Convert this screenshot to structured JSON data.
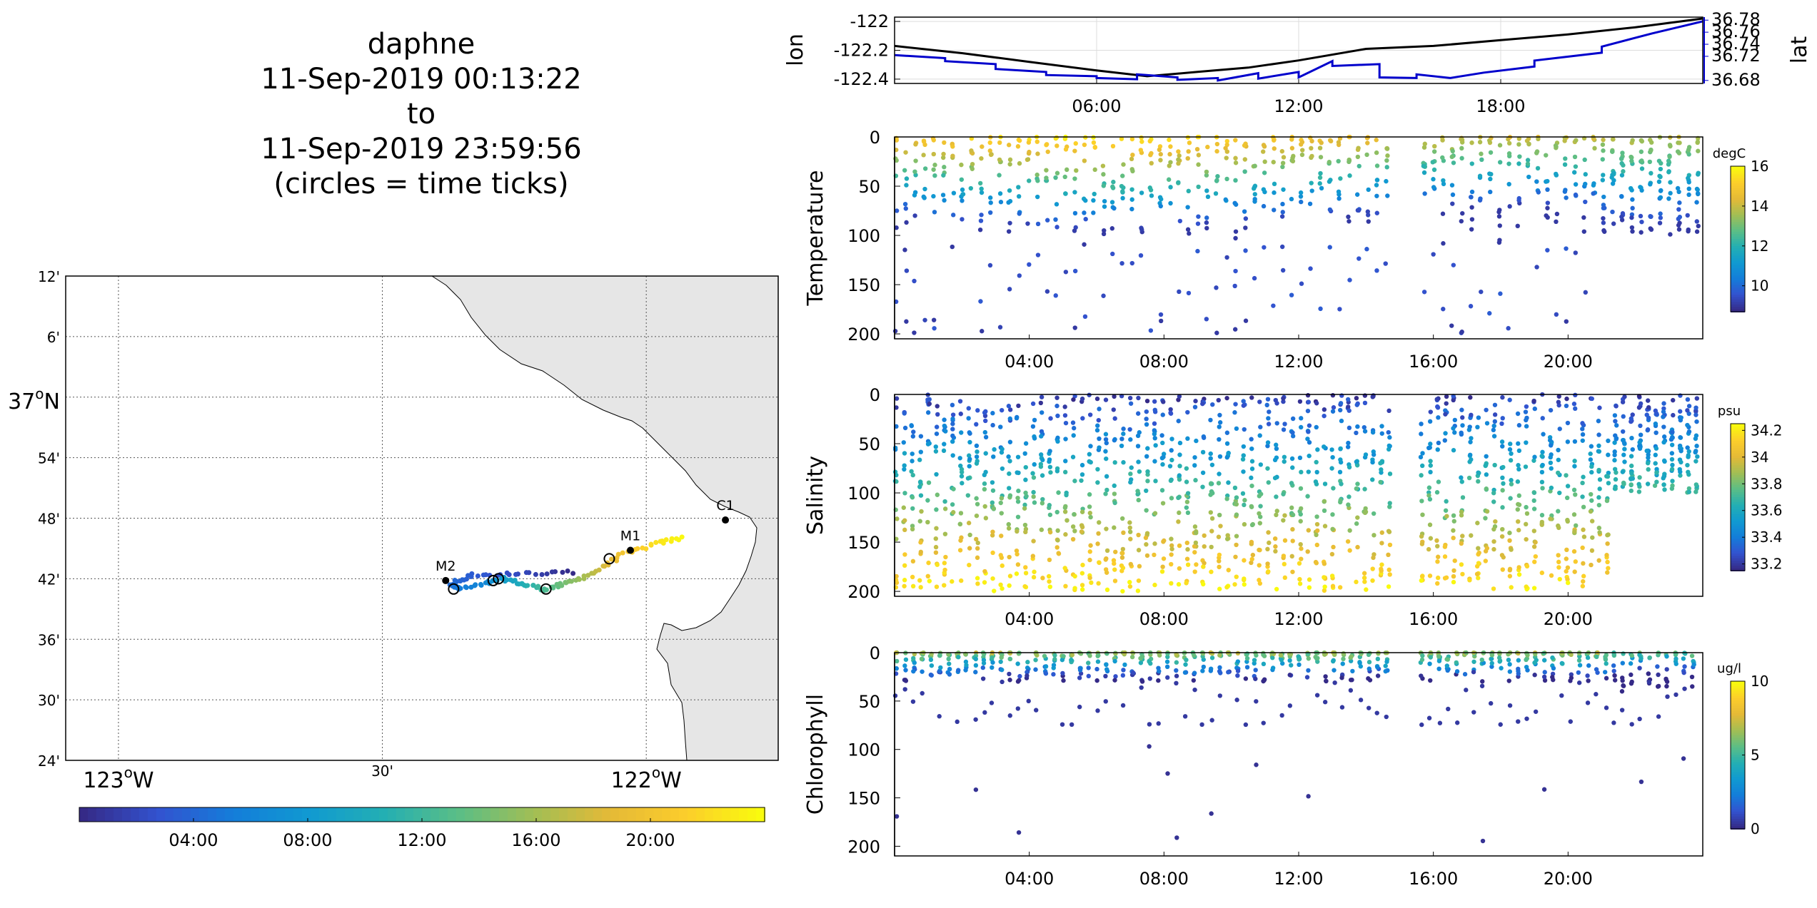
{
  "title": {
    "lines": [
      "daphne",
      "11-Sep-2019 00:13:22",
      "to",
      "11-Sep-2019 23:59:56",
      "(circles = time ticks)"
    ]
  },
  "colors": {
    "track_blue": "#0000cc",
    "track_black": "#000000",
    "land": "#e6e6e6"
  },
  "chart_data": [
    {
      "type": "line",
      "name": "position",
      "ylabel_left": "lon",
      "ylabel_right": "lat",
      "xlim": [
        0,
        24
      ],
      "x_ticks": [
        "06:00",
        "12:00",
        "18:00"
      ],
      "x_tick_values": [
        6,
        12,
        18
      ],
      "ylim_left": [
        -122.43,
        -121.97
      ],
      "y_ticks_left": [
        "-122",
        "-122.2",
        "-122.4"
      ],
      "y_tick_values_left": [
        -122,
        -122.2,
        -122.4
      ],
      "ylim_right": [
        36.675,
        36.785
      ],
      "y_ticks_right": [
        "36.78",
        "36.76",
        "36.74",
        "36.72",
        "36.68"
      ],
      "y_tick_values_right": [
        36.78,
        36.76,
        36.74,
        36.72,
        36.68
      ],
      "series": [
        {
          "name": "lon",
          "color": "#000000",
          "x": [
            0,
            2,
            4,
            6,
            7.5,
            9,
            10.5,
            12,
            14,
            16,
            18,
            20,
            22,
            24
          ],
          "y": [
            -122.17,
            -122.22,
            -122.28,
            -122.34,
            -122.38,
            -122.35,
            -122.32,
            -122.27,
            -122.19,
            -122.17,
            -122.13,
            -122.09,
            -122.04,
            -121.98
          ]
        },
        {
          "name": "lat",
          "color": "#0000cc",
          "x": [
            0,
            1.5,
            1.5,
            3,
            3,
            4.5,
            4.5,
            6,
            6,
            7.2,
            7.2,
            8.4,
            8.4,
            9.6,
            9.6,
            10.8,
            10.8,
            12,
            12,
            13,
            13,
            14.4,
            14.4,
            15.5,
            15.5,
            16.5,
            17.5,
            19,
            19,
            21,
            21,
            22.5,
            24
          ],
          "y": [
            36.722,
            36.717,
            36.712,
            36.707,
            36.699,
            36.694,
            36.689,
            36.687,
            36.684,
            36.682,
            36.69,
            36.685,
            36.681,
            36.684,
            36.68,
            36.692,
            36.683,
            36.694,
            36.685,
            36.712,
            36.704,
            36.707,
            36.685,
            36.684,
            36.69,
            36.684,
            36.693,
            36.703,
            36.713,
            36.726,
            36.736,
            36.758,
            36.778
          ]
        }
      ]
    },
    {
      "type": "scatter",
      "name": "temperature",
      "ylabel": "Temperature",
      "xlim": [
        0,
        24
      ],
      "x_ticks": [
        "04:00",
        "08:00",
        "12:00",
        "16:00",
        "20:00"
      ],
      "x_tick_values": [
        4,
        8,
        12,
        16,
        20
      ],
      "ylim": [
        0,
        205
      ],
      "y_reversed": true,
      "y_ticks": [
        "0",
        "50",
        "100",
        "150",
        "200"
      ],
      "y_tick_values": [
        0,
        50,
        100,
        150,
        200
      ],
      "colorbar": {
        "unit": "degC",
        "range": [
          8.7,
          16
        ],
        "ticks": [
          "16",
          "14",
          "12",
          "10"
        ],
        "tick_values": [
          16,
          14,
          12,
          10
        ]
      },
      "profile_interval_hours": 0.28,
      "data_gaps_hours": [
        [
          14.8,
          15.6
        ]
      ],
      "deep_dive_hours": [
        0.5,
        3.2,
        4.9,
        7.0,
        9.3,
        10.9,
        12.2,
        14.1,
        15.8,
        17.5,
        19.8
      ]
    },
    {
      "type": "scatter",
      "name": "salinity",
      "ylabel": "Salinity",
      "xlim": [
        0,
        24
      ],
      "x_ticks": [
        "04:00",
        "08:00",
        "12:00",
        "16:00",
        "20:00"
      ],
      "x_tick_values": [
        4,
        8,
        12,
        16,
        20
      ],
      "ylim": [
        0,
        205
      ],
      "y_reversed": true,
      "y_ticks": [
        "0",
        "50",
        "100",
        "150",
        "200"
      ],
      "y_tick_values": [
        0,
        50,
        100,
        150,
        200
      ],
      "colorbar": {
        "unit": "psu",
        "range": [
          33.15,
          34.25
        ],
        "ticks": [
          "34.2",
          "34",
          "33.8",
          "33.6",
          "33.4",
          "33.2"
        ],
        "tick_values": [
          34.2,
          34,
          33.8,
          33.6,
          33.4,
          33.2
        ]
      },
      "profile_interval_hours": 0.24,
      "data_gaps_hours": [
        [
          14.8,
          15.6
        ]
      ]
    },
    {
      "type": "scatter",
      "name": "chlorophyll",
      "ylabel": "Chlorophyll",
      "xlim": [
        0,
        24
      ],
      "x_ticks": [
        "04:00",
        "08:00",
        "12:00",
        "16:00",
        "20:00"
      ],
      "x_tick_values": [
        4,
        8,
        12,
        16,
        20
      ],
      "ylim": [
        0,
        210
      ],
      "y_reversed": true,
      "y_ticks": [
        "0",
        "50",
        "100",
        "150",
        "200"
      ],
      "y_tick_values": [
        0,
        50,
        100,
        150,
        200
      ],
      "colorbar": {
        "unit": "ug/l",
        "range": [
          0,
          10
        ],
        "ticks": [
          "10",
          "5",
          "0"
        ],
        "tick_values": [
          10,
          5,
          0
        ]
      },
      "profile_interval_hours": 0.26,
      "data_gaps_hours": [
        [
          14.8,
          15.6
        ]
      ]
    }
  ],
  "map": {
    "lon_range": [
      -123.1,
      -121.75
    ],
    "lat_range": [
      36.4,
      37.2
    ],
    "lat_ticks": [
      "12'",
      "6'",
      "37°N",
      "54'",
      "48'",
      "42'",
      "36'",
      "30'",
      "24'"
    ],
    "lat_tick_values": [
      37.2,
      37.1,
      37.0,
      36.9,
      36.8,
      36.7,
      36.6,
      36.5,
      36.4
    ],
    "lat_major_label": {
      "base": "37",
      "sup": "o",
      "suffix": "N"
    },
    "lon_ticks": [
      {
        "value": -123.0,
        "base": "123",
        "sup": "o",
        "suffix": "W",
        "major": true
      },
      {
        "value": -122.5,
        "base": "30'",
        "sup": "",
        "suffix": "",
        "major": false
      },
      {
        "value": -122.0,
        "base": "122",
        "sup": "o",
        "suffix": "W",
        "major": true
      }
    ],
    "stations": [
      {
        "label": "C1",
        "lon": -121.85,
        "lat": 36.797
      },
      {
        "label": "M1",
        "lon": -122.03,
        "lat": 36.747
      },
      {
        "label": "M2",
        "lon": -122.38,
        "lat": 36.697
      }
    ],
    "time_tick_circles": [
      {
        "lon": -122.365,
        "lat": 36.683
      },
      {
        "lon": -122.29,
        "lat": 36.697
      },
      {
        "lon": -122.28,
        "lat": 36.7
      },
      {
        "lon": -122.19,
        "lat": 36.683
      },
      {
        "lon": -122.07,
        "lat": 36.733
      }
    ],
    "colorbar": {
      "range_hours": [
        0,
        24
      ],
      "ticks": [
        "04:00",
        "08:00",
        "12:00",
        "16:00",
        "20:00"
      ],
      "tick_values": [
        4,
        8,
        12,
        16,
        20
      ]
    }
  }
}
